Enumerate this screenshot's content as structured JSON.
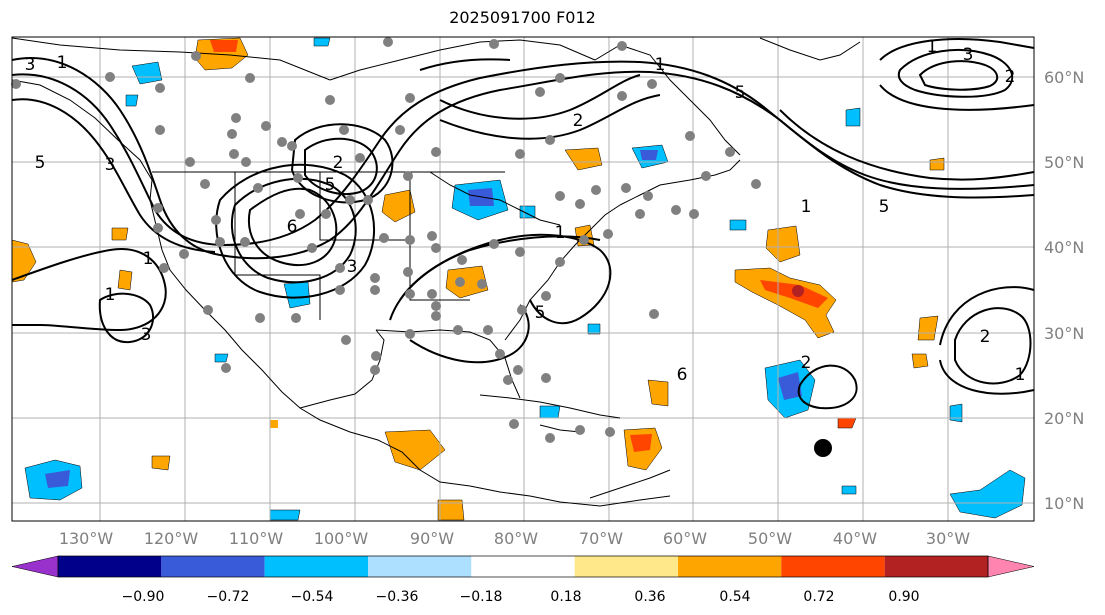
{
  "title": "2025091700 F012",
  "map": {
    "lon_labels": [
      "130°W",
      "120°W",
      "110°W",
      "100°W",
      "90°W",
      "80°W",
      "70°W",
      "60°W",
      "50°W",
      "40°W",
      "30°W"
    ],
    "lat_labels": [
      "60°N",
      "50°N",
      "40°N",
      "30°N",
      "20°N",
      "10°N"
    ],
    "contour_labels": [
      "3",
      "1",
      "3",
      "5",
      "1",
      "3",
      "6",
      "2",
      "5",
      "1",
      "3",
      "2",
      "1",
      "5",
      "6",
      "5",
      "1",
      "3",
      "2",
      "2",
      "1",
      "2",
      "1",
      "1",
      "5"
    ],
    "colors": {
      "contour": "#000000",
      "grid": "#b0b0b0",
      "station": "#808080",
      "storm": "#000000"
    }
  },
  "colorbar": {
    "tick_labels": [
      "−0.90",
      "−0.72",
      "−0.54",
      "−0.36",
      "−0.18",
      "0.18",
      "0.36",
      "0.54",
      "0.72",
      "0.90"
    ],
    "colors": [
      "#9932cc",
      "#00008b",
      "#3a5bd9",
      "#00bfff",
      "#ade0ff",
      "#ffffff",
      "#ffe88a",
      "#ffa500",
      "#ff4500",
      "#b22222",
      "#ff85b0"
    ]
  }
}
